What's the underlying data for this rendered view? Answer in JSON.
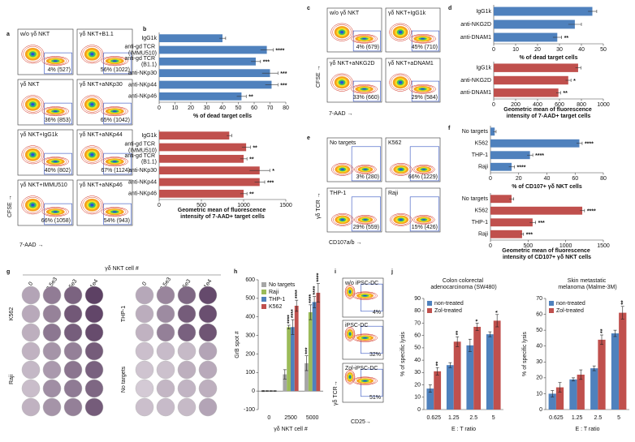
{
  "panel_letters": [
    "a",
    "b",
    "c",
    "d",
    "e",
    "f",
    "g",
    "h",
    "i",
    "j"
  ],
  "flow_panels": {
    "a": {
      "y_label": "CFSE →",
      "x_label": "7-AAD →",
      "plots": [
        {
          "title": "w/o γδ NKT",
          "label": "4% (527)"
        },
        {
          "title": "γδ NKT+B1.1",
          "label": "56% (1022)"
        },
        {
          "title": "γδ NKT",
          "label": "36% (853)"
        },
        {
          "title": "γδ NKT+aNKp30",
          "label": "65% (1042)"
        },
        {
          "title": "γδ NKT+IgG1k",
          "label": "40% (802)"
        },
        {
          "title": "γδ NKT+aNKp44",
          "label": "67% (1124)"
        },
        {
          "title": "γδ NKT+IMMU510",
          "label": "66% (1058)"
        },
        {
          "title": "γδ NKT+aNKp46",
          "label": "54% (943)"
        }
      ]
    },
    "c": {
      "y_label": "CFSE →",
      "x_label": "7-AAD →",
      "plots": [
        {
          "title": "w/o γδ NKT",
          "label": "4% (679)"
        },
        {
          "title": "γδ NKT+IgG1k",
          "label": "45% (710)"
        },
        {
          "title": "γδ NKT+aNKG2D",
          "label": "33% (660)"
        },
        {
          "title": "γδ NKT+aDNAM1",
          "label": "29% (584)"
        }
      ]
    },
    "e": {
      "y_label": "γδ TCR →",
      "x_label": "CD107a/b →",
      "plots": [
        {
          "title": "No targets",
          "label": "3% (280)"
        },
        {
          "title": "K562",
          "label": "66% (1229)"
        },
        {
          "title": "THP-1",
          "label": "29% (559)"
        },
        {
          "title": "Raji",
          "label": "15% (426)"
        }
      ]
    },
    "i": {
      "y_label": "γδ TCR→",
      "x_label": "CD25→",
      "plots": [
        {
          "title": "w/o iPSC-DC",
          "label": "4%"
        },
        {
          "title": "iPSC-DC",
          "label": "32%"
        },
        {
          "title": "Zol-iPSC-DC",
          "label": "51%"
        }
      ]
    }
  },
  "elispot": {
    "title": "γδ NKT cell #",
    "columns": [
      "0",
      "2.5e3",
      "5e3",
      "1e4"
    ],
    "left_rows": [
      "K562",
      "Raji"
    ],
    "right_rows": [
      "THP-1",
      "No targets"
    ]
  },
  "chart_data": [
    {
      "type": "hbar",
      "color": "#4f81bd",
      "categories": [
        "IgG1k",
        "anti-gd TCR (IMMU510)",
        "anti-gd TCR (B1.1)",
        "anti-NKp30",
        "anti-NKp44",
        "anti-NKp46"
      ],
      "values": [
        40,
        68,
        61,
        70,
        71,
        52
      ],
      "errors": [
        2,
        4,
        3,
        5,
        4,
        3
      ],
      "significance": [
        null,
        "****",
        "***",
        "***",
        "***",
        "**"
      ],
      "xlim": [
        0,
        80
      ],
      "xticks": [
        0,
        10,
        20,
        30,
        40,
        50,
        60,
        70,
        80
      ],
      "x_label": "% of dead target cells"
    },
    {
      "type": "hbar",
      "color": "#c0504d",
      "categories": [
        "IgG1k",
        "anti-gd TCR (IMMU510)",
        "anti-gd TCR (B1.1)",
        "anti-NKp30",
        "anti-NKp44",
        "anti-NKp46"
      ],
      "values": [
        830,
        1030,
        1000,
        1190,
        1190,
        1000
      ],
      "errors": [
        30,
        50,
        40,
        120,
        60,
        40
      ],
      "significance": [
        null,
        "**",
        "**",
        "*",
        "***",
        "**"
      ],
      "xlim": [
        0,
        1500
      ],
      "xticks": [
        0,
        500,
        1000,
        1500
      ],
      "x_label": "Geometric mean of fluorescence intensity of 7-AAD+ target cells"
    },
    {
      "type": "hbar",
      "color": "#4f81bd",
      "categories": [
        "IgG1k",
        "anti-NKG2D",
        "anti-DNAM1"
      ],
      "values": [
        45,
        37,
        29
      ],
      "errors": [
        2,
        3,
        2
      ],
      "significance": [
        null,
        null,
        "**"
      ],
      "xlim": [
        0,
        50
      ],
      "xticks": [
        0,
        10,
        20,
        30,
        40,
        50
      ],
      "x_label": "% of dead target cells"
    },
    {
      "type": "hbar",
      "color": "#c0504d",
      "categories": [
        "IgG1k",
        "anti-NKG2D",
        "anti-DNAM1"
      ],
      "values": [
        770,
        680,
        590
      ],
      "errors": [
        25,
        25,
        20
      ],
      "significance": [
        null,
        "*",
        "**"
      ],
      "xlim": [
        0,
        1000
      ],
      "xticks": [
        0,
        200,
        400,
        600,
        800,
        1000
      ],
      "x_label": "Geometric mean of fluorescence intensity of 7-AAD+ target cells"
    },
    {
      "type": "hbar",
      "color": "#4f81bd",
      "categories": [
        "No targets",
        "K562",
        "THP-1",
        "Raji"
      ],
      "values": [
        3,
        63,
        28,
        15
      ],
      "errors": [
        1,
        2,
        2,
        2
      ],
      "significance": [
        null,
        "****",
        "****",
        "****"
      ],
      "xlim": [
        0,
        80
      ],
      "xticks": [
        0,
        20,
        40,
        60,
        80
      ],
      "x_label": "% of CD107+ γδ NKT cells"
    },
    {
      "type": "hbar",
      "color": "#c0504d",
      "categories": [
        "No targets",
        "K562",
        "THP-1",
        "Raji"
      ],
      "values": [
        280,
        1220,
        560,
        420
      ],
      "errors": [
        30,
        30,
        40,
        20
      ],
      "significance": [
        null,
        "****",
        "***",
        "***"
      ],
      "xlim": [
        0,
        1500
      ],
      "xticks": [
        0,
        500,
        1000,
        1500
      ],
      "x_label": "Geometric mean of fluorescence intensity of CD107+ γδ NKT cells"
    },
    {
      "type": "bar",
      "categories": [
        "0",
        "2500",
        "5000"
      ],
      "series": [
        {
          "name": "No targets",
          "color": "#a6a6a6",
          "values": [
            0,
            90,
            150
          ],
          "errors": [
            3,
            25,
            40
          ],
          "significance": [
            null,
            null,
            "***"
          ]
        },
        {
          "name": "Raji",
          "color": "#9bbb59",
          "values": [
            0,
            345,
            425
          ],
          "errors": [
            2,
            10,
            40
          ],
          "significance": [
            null,
            "****",
            "****"
          ]
        },
        {
          "name": "THP-1",
          "color": "#4f81bd",
          "values": [
            0,
            345,
            480
          ],
          "errors": [
            2,
            40,
            30
          ],
          "significance": [
            null,
            "****",
            "****"
          ]
        },
        {
          "name": "K562",
          "color": "#c0504d",
          "values": [
            0,
            460,
            530
          ],
          "errors": [
            2,
            30,
            50
          ],
          "significance": [
            null,
            "****",
            "****"
          ]
        }
      ],
      "ylim": [
        -100,
        600
      ],
      "yticks": [
        -100,
        0,
        100,
        200,
        300,
        400,
        500,
        600
      ],
      "y_label": "GrB spot #",
      "x_label": "γδ NKT cell #"
    },
    {
      "type": "bar",
      "title": "Colon colorectal adenocarcinoma (SW480)",
      "categories": [
        "0.625",
        "1.25",
        "2.5",
        "5"
      ],
      "series": [
        {
          "name": "non-treated",
          "color": "#4f81bd",
          "values": [
            17,
            36,
            52,
            61
          ],
          "errors": [
            3,
            2,
            5,
            2
          ],
          "significance": [
            null,
            null,
            null,
            null
          ]
        },
        {
          "name": "Zol-treated",
          "color": "#c0504d",
          "values": [
            31,
            55,
            67,
            72
          ],
          "errors": [
            3,
            4,
            3,
            5
          ],
          "significance": [
            "**",
            "**",
            "*",
            "*"
          ]
        }
      ],
      "ylim": [
        0,
        90
      ],
      "yticks": [
        0,
        10,
        20,
        30,
        40,
        50,
        60,
        70,
        80,
        90
      ],
      "y_label": "% of specific lysis",
      "x_label": "E : T ratio"
    },
    {
      "type": "bar",
      "title": "Skin metastatic melanoma (Malme-3M)",
      "categories": [
        "0.625",
        "1.25",
        "2.5",
        "5"
      ],
      "series": [
        {
          "name": "non-treated",
          "color": "#4f81bd",
          "values": [
            10,
            19,
            26,
            48
          ],
          "errors": [
            2,
            1,
            1.5,
            2
          ],
          "significance": [
            null,
            null,
            null,
            null
          ]
        },
        {
          "name": "Zol-treated",
          "color": "#c0504d",
          "values": [
            14,
            22,
            44,
            61
          ],
          "errors": [
            3,
            3,
            3,
            4
          ],
          "significance": [
            null,
            null,
            "**",
            "**"
          ]
        }
      ],
      "ylim": [
        0,
        70
      ],
      "yticks": [
        0,
        10,
        20,
        30,
        40,
        50,
        60,
        70
      ],
      "y_label": "% of specific lysis",
      "x_label": "E : T ratio"
    }
  ]
}
